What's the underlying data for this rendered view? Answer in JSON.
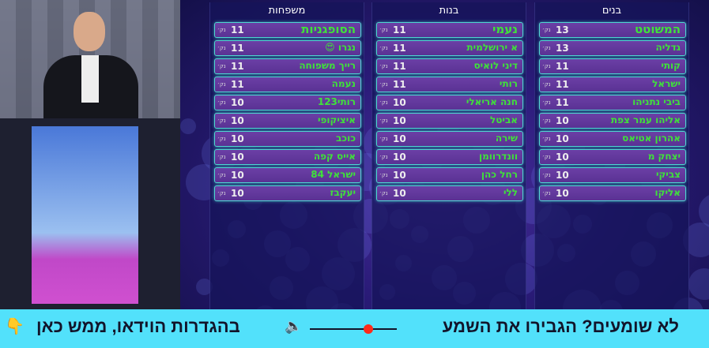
{
  "columns": [
    {
      "title": "בנים",
      "rows": [
        {
          "name": "המשוטט",
          "score": "13",
          "unit": "נק׳"
        },
        {
          "name": "גדליה",
          "score": "13",
          "unit": "נק׳"
        },
        {
          "name": "קותי",
          "score": "11",
          "unit": "נק׳"
        },
        {
          "name": "ישראל",
          "score": "11",
          "unit": "נק׳"
        },
        {
          "name": "ביבי נתניהו",
          "score": "11",
          "unit": "נק׳"
        },
        {
          "name": "אליהו עמר צפת",
          "score": "10",
          "unit": "נק׳"
        },
        {
          "name": "אהרון אטיאס",
          "score": "10",
          "unit": "נק׳"
        },
        {
          "name": "יצחק מ",
          "score": "10",
          "unit": "נק׳"
        },
        {
          "name": "צביקי",
          "score": "10",
          "unit": "נק׳"
        },
        {
          "name": "אליקו",
          "score": "10",
          "unit": "נק׳"
        }
      ]
    },
    {
      "title": "בנות",
      "rows": [
        {
          "name": "נעמי",
          "score": "11",
          "unit": "נק׳"
        },
        {
          "name": "א ירושלמית",
          "score": "11",
          "unit": "נק׳"
        },
        {
          "name": "דיני לואיס",
          "score": "11",
          "unit": "נק׳"
        },
        {
          "name": "רותי",
          "score": "11",
          "unit": "נק׳"
        },
        {
          "name": "חנה אריאלי",
          "score": "10",
          "unit": "נק׳"
        },
        {
          "name": "אביטל",
          "score": "10",
          "unit": "נק׳"
        },
        {
          "name": "שירה",
          "score": "10",
          "unit": "נק׳"
        },
        {
          "name": "וונדרוומן",
          "score": "10",
          "unit": "נק׳"
        },
        {
          "name": "רחל כהן",
          "score": "10",
          "unit": "נק׳"
        },
        {
          "name": "ללי",
          "score": "10",
          "unit": "נק׳"
        }
      ]
    },
    {
      "title": "משפחות",
      "rows": [
        {
          "name": "הסופגניות",
          "score": "11",
          "unit": "נק׳"
        },
        {
          "name": "נגרו 😍",
          "score": "11",
          "unit": "נק׳"
        },
        {
          "name": "רייך משפוחה",
          "score": "11",
          "unit": "נק׳"
        },
        {
          "name": "נעמה",
          "score": "11",
          "unit": "נק׳"
        },
        {
          "name": "רותי123",
          "score": "10",
          "unit": "נק׳"
        },
        {
          "name": "איציקופי",
          "score": "10",
          "unit": "נק׳"
        },
        {
          "name": "כוכב",
          "score": "10",
          "unit": "נק׳"
        },
        {
          "name": "אייס קפה",
          "score": "10",
          "unit": "נק׳"
        },
        {
          "name": "ישראל 84",
          "score": "10",
          "unit": "נק׳"
        },
        {
          "name": "יעקבז",
          "score": "10",
          "unit": "נק׳"
        }
      ]
    }
  ],
  "banner": {
    "text1": "לא שומעים? הגבירו את השמע",
    "text2": "בהגדרות הוידאו, ממש כאן",
    "icons": [
      "volume-slider",
      "speaker-icon",
      "pointing-hand-icon"
    ],
    "slider_color": "#ff2a1a",
    "bg": "#52e1fb"
  }
}
